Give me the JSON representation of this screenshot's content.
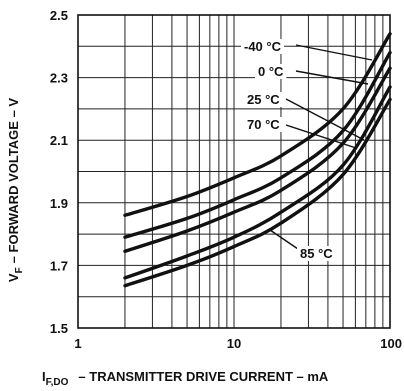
{
  "chart_data": {
    "type": "line",
    "x_scale": "log",
    "xlim": [
      1,
      100
    ],
    "ylim": [
      1.5,
      2.5
    ],
    "grid": true,
    "xlabel": {
      "main": "I",
      "sub": "F,DO",
      "rest": "– TRANSMITTER DRIVE CURRENT – mA"
    },
    "ylabel": {
      "main": "V",
      "sub": "F",
      "rest": "– FORWARD VOLTAGE – V"
    },
    "x_ticks": [
      {
        "value": 1,
        "label": "1"
      },
      {
        "value": 10,
        "label": "10"
      },
      {
        "value": 100,
        "label": "100"
      }
    ],
    "y_ticks": [
      {
        "value": 1.5,
        "label": "1.5"
      },
      {
        "value": 1.7,
        "label": "1.7"
      },
      {
        "value": 1.9,
        "label": "1.9"
      },
      {
        "value": 2.1,
        "label": "2.1"
      },
      {
        "value": 2.3,
        "label": "2.3"
      },
      {
        "value": 2.5,
        "label": "2.5"
      }
    ],
    "series": [
      {
        "name": "-40 °C",
        "x": [
          2,
          5,
          10,
          20,
          50,
          100
        ],
        "y": [
          1.86,
          1.92,
          1.98,
          2.05,
          2.2,
          2.44
        ]
      },
      {
        "name": "0 °C",
        "x": [
          2,
          5,
          10,
          20,
          50,
          100
        ],
        "y": [
          1.79,
          1.85,
          1.91,
          1.98,
          2.13,
          2.38
        ]
      },
      {
        "name": "25 °C",
        "x": [
          2,
          5,
          10,
          20,
          50,
          100
        ],
        "y": [
          1.745,
          1.81,
          1.87,
          1.94,
          2.09,
          2.33
        ]
      },
      {
        "name": "70 °C",
        "x": [
          2,
          5,
          10,
          20,
          50,
          100
        ],
        "y": [
          1.66,
          1.73,
          1.79,
          1.87,
          2.02,
          2.27
        ]
      },
      {
        "name": "85 °C",
        "x": [
          2,
          5,
          10,
          20,
          50,
          100
        ],
        "y": [
          1.635,
          1.7,
          1.76,
          1.835,
          1.99,
          2.23
        ]
      }
    ]
  }
}
